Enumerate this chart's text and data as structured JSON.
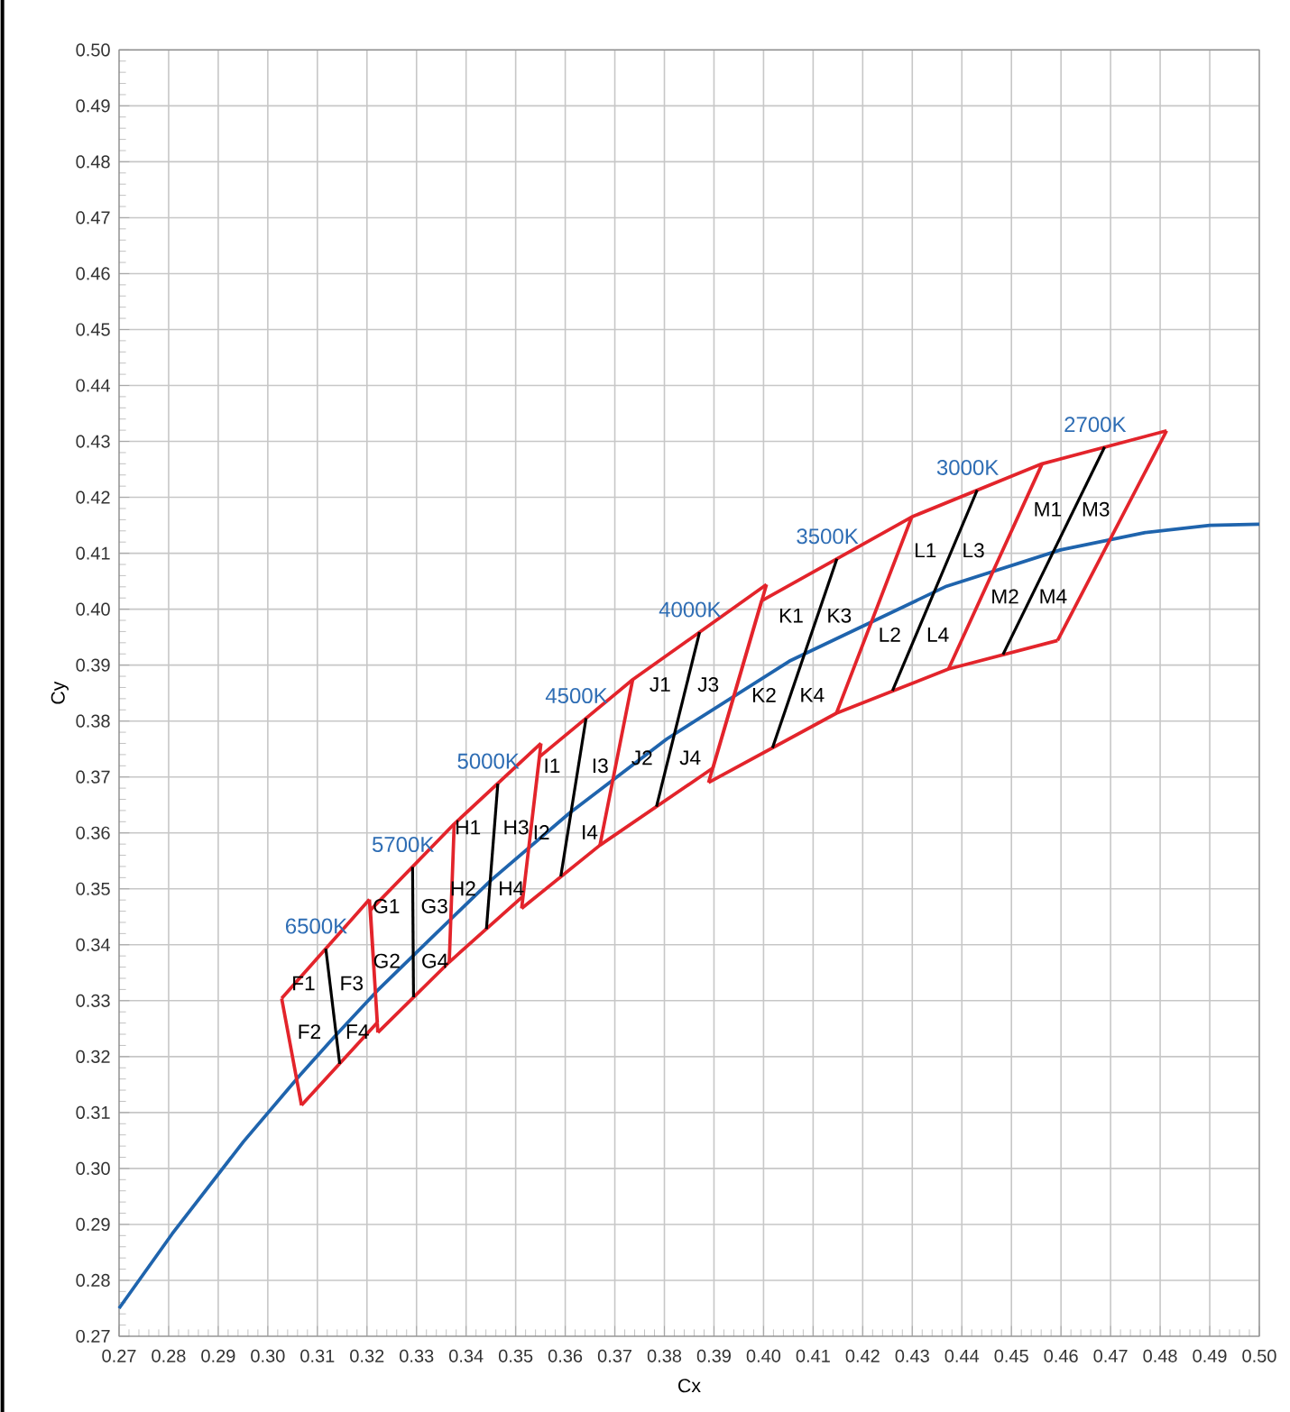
{
  "chart_data": {
    "type": "line",
    "xlabel": "Cx",
    "ylabel": "Cy",
    "xlim": [
      0.27,
      0.5
    ],
    "ylim": [
      0.27,
      0.5
    ],
    "xticks": [
      0.27,
      0.28,
      0.29,
      {
        "value": 0.3,
        "label": "0.30"
      },
      0.31,
      0.32,
      0.33,
      0.34,
      0.35,
      0.36,
      0.37,
      0.38,
      0.39,
      {
        "value": 0.4,
        "label": "0.40"
      },
      0.41,
      0.42,
      0.43,
      0.44,
      0.45,
      0.46,
      0.47,
      0.48,
      0.49,
      {
        "value": 0.5,
        "label": "0.50"
      }
    ],
    "yticks": [
      0.27,
      0.28,
      0.29,
      {
        "value": 0.3,
        "label": "0.30"
      },
      0.31,
      0.32,
      0.33,
      0.34,
      0.35,
      0.36,
      0.37,
      0.38,
      0.39,
      {
        "value": 0.4,
        "label": "0.40"
      },
      0.41,
      0.42,
      0.43,
      0.44,
      0.45,
      0.46,
      0.47,
      0.48,
      0.49,
      {
        "value": 0.5,
        "label": "0.50"
      }
    ],
    "grid": true,
    "series": [
      {
        "color": "#1f64ad",
        "x": [
          0.27,
          0.2807,
          0.2951,
          0.3064,
          0.3135,
          0.3221,
          0.3325,
          0.3451,
          0.3608,
          0.3805,
          0.4052,
          0.4369,
          0.4599,
          0.477,
          0.49,
          0.5
        ],
        "values": [
          0.275,
          0.2883,
          0.3048,
          0.3166,
          0.3236,
          0.3318,
          0.3408,
          0.3516,
          0.3635,
          0.3768,
          0.3907,
          0.4041,
          0.4106,
          0.4137,
          0.415,
          0.4152
        ]
      },
      {
        "color": "#e3242b",
        "x": [
          0.3028,
          0.3205,
          null,
          0.3207,
          0.3376,
          0.3551,
          null,
          0.3548,
          0.3736,
          0.4006,
          null,
          0.3996,
          0.4299,
          0.4562,
          0.4813
        ],
        "values": [
          0.3304,
          0.3481,
          null,
          0.3462,
          0.3616,
          0.376,
          null,
          0.3736,
          0.3874,
          0.4044,
          null,
          0.4015,
          0.4165,
          0.426,
          0.4319
        ]
      },
      {
        "color": "#e3242b",
        "x": [
          0.3068,
          0.3221,
          null,
          0.3222,
          0.3366,
          0.3515,
          null,
          0.3512,
          0.367,
          0.3898,
          null,
          0.3889,
          0.4147,
          0.4373,
          0.4593
        ],
        "values": [
          0.3113,
          0.3261,
          null,
          0.3243,
          0.3369,
          0.3487,
          null,
          0.3465,
          0.3578,
          0.3716,
          null,
          0.369,
          0.3814,
          0.3893,
          0.3944
        ]
      },
      {
        "color": "#e3242b",
        "x": [
          0.3028,
          0.3068,
          null,
          0.3205,
          0.3221,
          null,
          0.3207,
          0.3222,
          null,
          0.3366,
          0.3376,
          null,
          0.3512,
          0.3548,
          null,
          0.3515,
          0.3551,
          null,
          0.367,
          0.3736,
          null,
          0.3889,
          0.3996,
          null,
          0.3898,
          0.4006,
          null,
          0.4147,
          0.4299,
          null,
          0.4373,
          0.4562,
          null,
          0.4593,
          0.4813
        ],
        "values": [
          0.3304,
          0.3113,
          null,
          0.3481,
          0.3261,
          null,
          0.3462,
          0.3243,
          null,
          0.3369,
          0.3616,
          null,
          0.3465,
          0.3736,
          null,
          0.3487,
          0.376,
          null,
          0.3578,
          0.3874,
          null,
          0.369,
          0.4015,
          null,
          0.3716,
          0.4044,
          null,
          0.3814,
          0.4165,
          null,
          0.3893,
          0.426,
          null,
          0.3944,
          0.4319
        ]
      },
      {
        "name": "6500K",
        "color": "#000000",
        "x": [
          0.3117,
          0.3145
        ],
        "values": [
          0.3393,
          0.3187
        ]
      },
      {
        "name": "5700K",
        "color": "#000000",
        "x": [
          0.3292,
          0.3294
        ],
        "values": [
          0.3539,
          0.3306
        ]
      },
      {
        "name": "5000K",
        "color": "#000000",
        "x": [
          0.3464,
          0.3441
        ],
        "values": [
          0.3688,
          0.3428
        ]
      },
      {
        "name": "4500K",
        "color": "#000000",
        "x": [
          0.3642,
          0.3591
        ],
        "values": [
          0.3805,
          0.3522
        ]
      },
      {
        "name": "4000K",
        "color": "#000000",
        "x": [
          0.3871,
          0.3784
        ],
        "values": [
          0.3959,
          0.3647
        ]
      },
      {
        "name": "3500K",
        "color": "#000000",
        "x": [
          0.4148,
          0.4018
        ],
        "values": [
          0.409,
          0.3752
        ]
      },
      {
        "name": "3000K",
        "color": "#000000",
        "x": [
          0.4431,
          0.426
        ],
        "values": [
          0.4213,
          0.3854
        ]
      },
      {
        "name": "2700K",
        "color": "#000000",
        "x": [
          0.4688,
          0.4483
        ],
        "values": [
          0.429,
          0.3919
        ]
      }
    ],
    "annotations": [
      "F1",
      "F3",
      "F4",
      "F2",
      "G1",
      "G3",
      "G4",
      "G2",
      "H1",
      "H3",
      "H4",
      "H2",
      "I1",
      "I3",
      "I4",
      "I2",
      "J1",
      "J3",
      "J4",
      "J2",
      "K1",
      "K3",
      "K4",
      "K2",
      "L1",
      "L3",
      "L4",
      "L2",
      "M1",
      "M3",
      "M4",
      "M2"
    ]
  }
}
